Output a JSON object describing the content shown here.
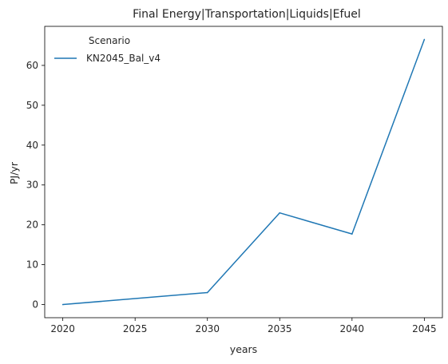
{
  "chart_data": {
    "type": "line",
    "title": "Final Energy|Transportation|Liquids|Efuel",
    "xlabel": "years",
    "ylabel": "PJ/yr",
    "x": [
      2020,
      2030,
      2035,
      2040,
      2045
    ],
    "series": [
      {
        "name": "KN2045_Bal_v4",
        "color": "#1f77b4",
        "values": [
          0.0,
          3.0,
          23.0,
          17.7,
          66.5
        ]
      }
    ],
    "xticks": [
      2020,
      2025,
      2030,
      2035,
      2040,
      2045
    ],
    "yticks": [
      0,
      10,
      20,
      30,
      40,
      50,
      60
    ],
    "xlim": [
      2018.75,
      2046.25
    ],
    "ylim": [
      -3.3,
      69.8
    ],
    "legend": {
      "title": "Scenario",
      "placement": "top-left"
    },
    "grid": false
  }
}
